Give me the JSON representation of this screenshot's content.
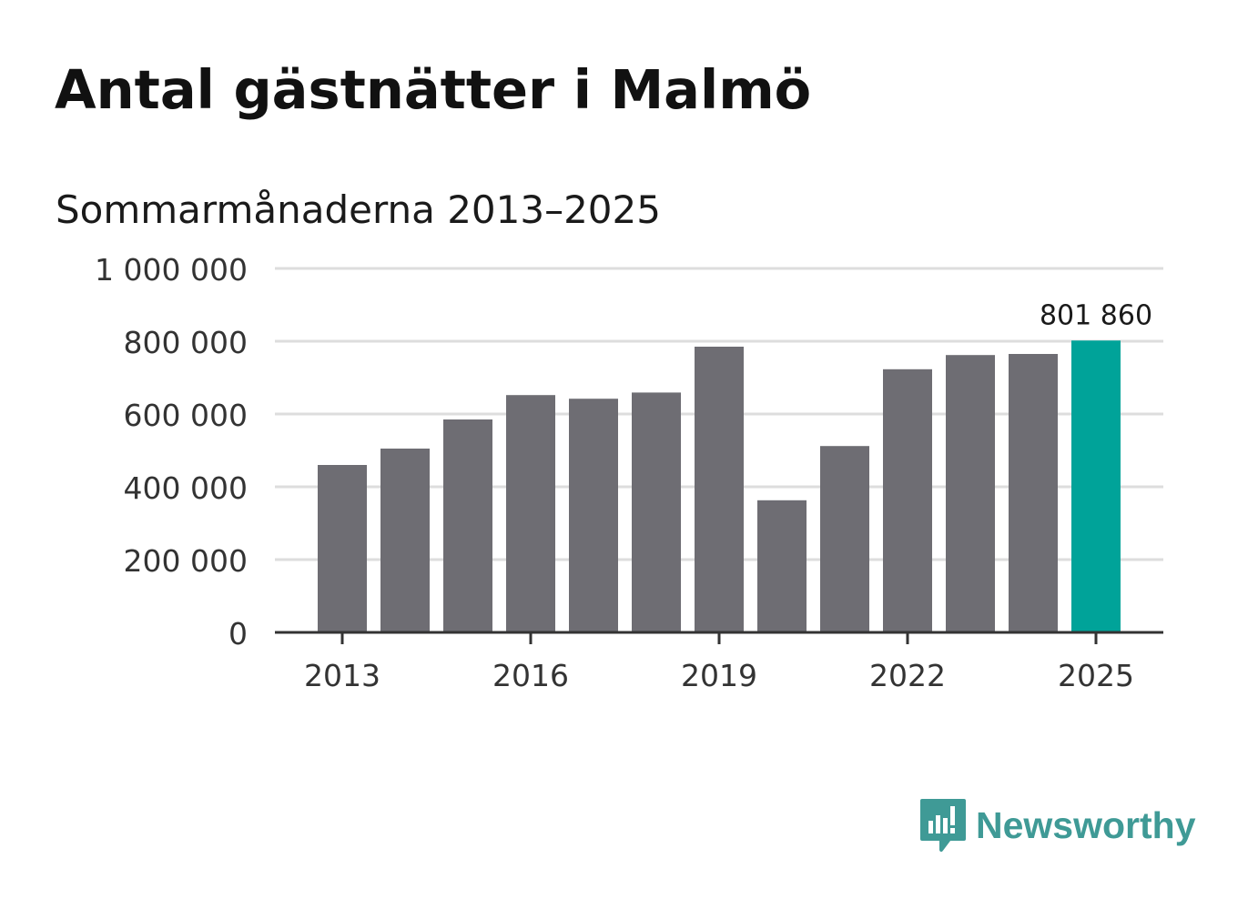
{
  "title": "Antal gästnätter i Malmö",
  "subtitle": "Sommarmånaderna 2013–2025",
  "brand": {
    "name": "Newsworthy",
    "icon": "newsworthy-logo-icon",
    "color": "#3f9a96"
  },
  "chart_data": {
    "type": "bar",
    "categories": [
      "2013",
      "2014",
      "2015",
      "2016",
      "2017",
      "2018",
      "2019",
      "2020",
      "2021",
      "2022",
      "2023",
      "2024",
      "2025"
    ],
    "values": [
      460000,
      505000,
      585000,
      652000,
      642000,
      659000,
      785000,
      363000,
      512000,
      723000,
      762000,
      765000,
      801860
    ],
    "x_tick_labels": [
      "2013",
      "2016",
      "2019",
      "2022",
      "2025"
    ],
    "y_ticks": [
      0,
      200000,
      400000,
      600000,
      800000,
      1000000
    ],
    "y_tick_labels": [
      "0",
      "200 000",
      "400 000",
      "600 000",
      "800 000",
      "1 000 000"
    ],
    "ylim": [
      0,
      1000000
    ],
    "grid": true,
    "highlight": {
      "category": "2025",
      "label": "801 860"
    },
    "colors": {
      "bar": "#6e6d73",
      "highlight": "#00a399",
      "grid": "#dddddd",
      "axis": "#333333"
    }
  }
}
